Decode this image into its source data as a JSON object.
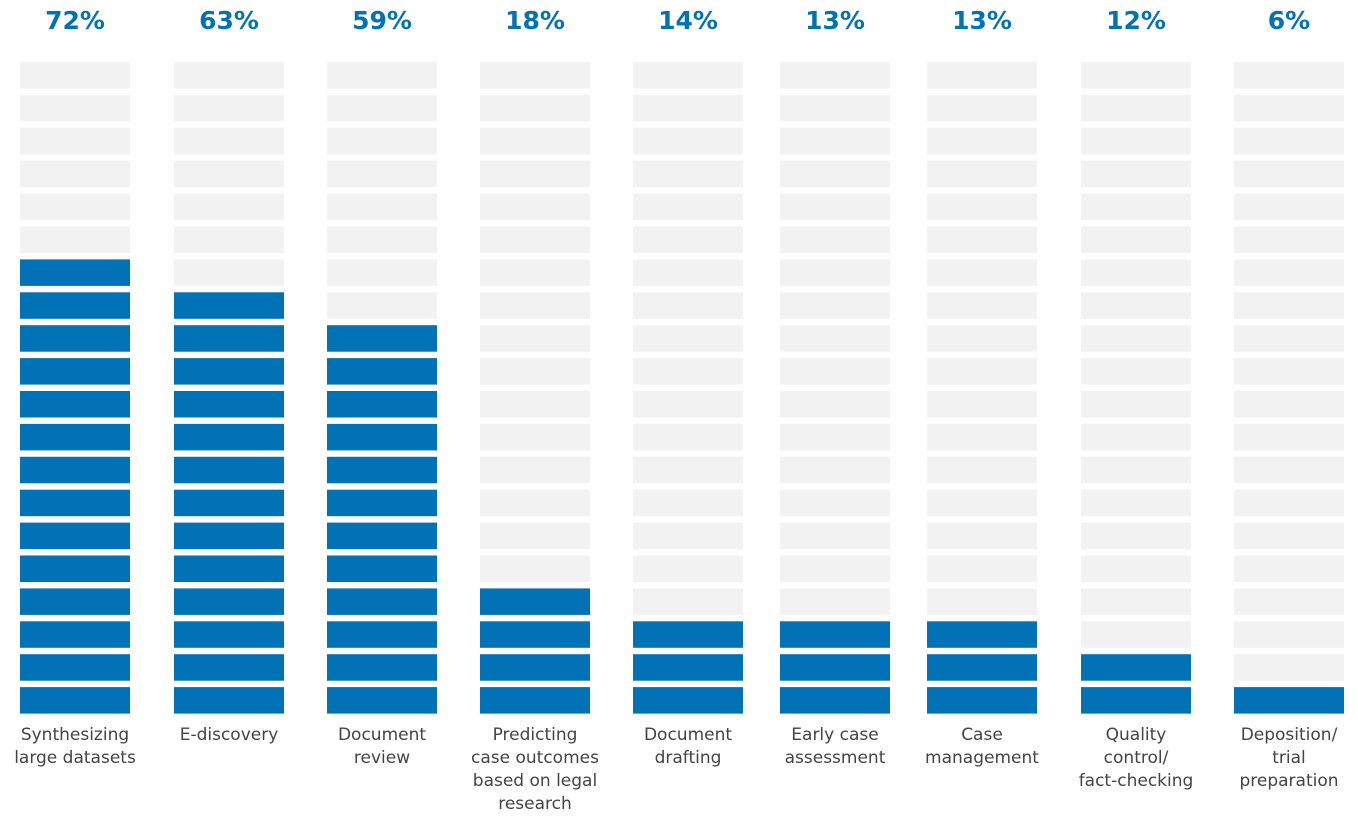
{
  "chart_data": {
    "type": "segmented-bar",
    "categories": [
      "Synthesizing\nlarge datasets",
      "E-discovery",
      "Document\nreview",
      "Predicting\ncase outcomes\nbased on legal\nresearch",
      "Document\ndrafting",
      "Early case\nassessment",
      "Case\nmanagement",
      "Quality\ncontrol/\nfact-checking",
      "Deposition/\ntrial\npreparation"
    ],
    "values": [
      72,
      63,
      59,
      18,
      14,
      13,
      13,
      12,
      6
    ],
    "value_labels": [
      "72%",
      "63%",
      "59%",
      "18%",
      "14%",
      "13%",
      "13%",
      "12%",
      "6%"
    ],
    "ylim": [
      0,
      100
    ],
    "color": "#0072b5"
  }
}
